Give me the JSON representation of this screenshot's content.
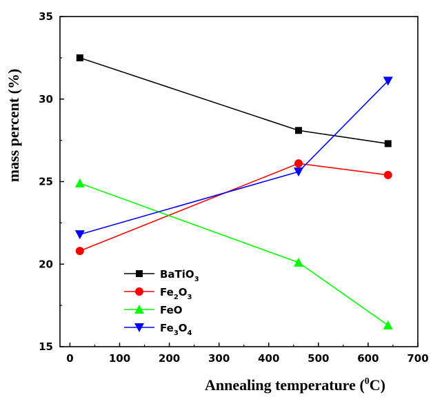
{
  "chart_data": {
    "type": "line",
    "xlabel": "Annealing temperature (",
    "xlabel_sup": "0",
    "xlabel_end": "C)",
    "ylabel": "mass percent (%)",
    "xlim": [
      -20,
      700
    ],
    "ylim": [
      15,
      35
    ],
    "xticks": [
      "0",
      "100",
      "200",
      "300",
      "400",
      "500",
      "600",
      "700"
    ],
    "yticks": [
      "15",
      "20",
      "25",
      "30",
      "35"
    ],
    "xtick_values": [
      0,
      100,
      200,
      300,
      400,
      500,
      600,
      700
    ],
    "ytick_values": [
      15,
      20,
      25,
      30,
      35
    ],
    "legend_position": "bottom-left",
    "grid": false,
    "x": [
      20,
      460,
      640
    ],
    "series": [
      {
        "name": "BaTiO3",
        "base": "BaTiO",
        "sub": "3",
        "tail": "",
        "tail_sub": "",
        "color": "#000000",
        "marker": "square",
        "values": [
          32.5,
          28.1,
          27.3
        ]
      },
      {
        "name": "Fe2O3",
        "base": "Fe",
        "sub": "2",
        "tail": "O",
        "tail_sub": "3",
        "color": "#ff0000",
        "marker": "circle",
        "values": [
          20.8,
          26.1,
          25.4
        ]
      },
      {
        "name": "FeO",
        "base": "FeO",
        "sub": "",
        "tail": "",
        "tail_sub": "",
        "color": "#00ff00",
        "marker": "triangle-up",
        "values": [
          24.9,
          20.1,
          16.3
        ]
      },
      {
        "name": "Fe3O4",
        "base": "Fe",
        "sub": "3",
        "tail": "O",
        "tail_sub": "4",
        "color": "#0000ff",
        "marker": "triangle-down",
        "values": [
          21.8,
          25.6,
          31.1
        ]
      }
    ]
  }
}
